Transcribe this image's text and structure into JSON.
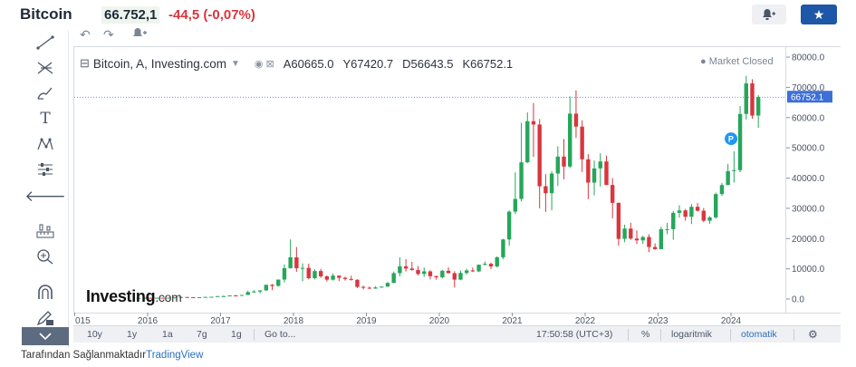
{
  "header": {
    "name": "Bitcoin",
    "price": "66.752,1",
    "change": "-44,5",
    "change_pct": "(-0,07%)"
  },
  "legend": {
    "title": "Bitcoin, A, Investing.com",
    "open": "A60665.0",
    "high": "Y67420.7",
    "low": "D56643.5",
    "close": "K66752.1",
    "market_status": "Market Closed"
  },
  "logo": {
    "main": "Investing",
    "suffix": ".com"
  },
  "bottom_bar": {
    "ranges": [
      "10y",
      "1y",
      "1a",
      "7g",
      "1g"
    ],
    "goto": "Go to...",
    "time": "17:50:58 (UTC+3)",
    "percent": "%",
    "log": "logaritmik",
    "auto": "otomatik"
  },
  "footer": {
    "prefix": "Tarafından Sağlanmaktadır",
    "link": "TradingView"
  },
  "colors": {
    "up": "#26a65b",
    "down": "#d9363e",
    "accent": "#1e56a8",
    "last_price_bg": "#3d6fd6"
  },
  "chart_data": {
    "type": "candlestick",
    "title": "Bitcoin, A, Investing.com",
    "interval": "monthly",
    "x_tick_labels": [
      "015",
      "2016",
      "2017",
      "2018",
      "2019",
      "2020",
      "2021",
      "2022",
      "2023",
      "2024"
    ],
    "y_tick_labels": [
      "80000.0",
      "70000.0",
      "60000.0",
      "50000.0",
      "40000.0",
      "30000.0",
      "20000.0",
      "10000.0",
      "0.0"
    ],
    "ylim": [
      -3000,
      80000
    ],
    "last_price": "66752.1",
    "marker_label": "P",
    "candles": [
      {
        "date": "2015-11",
        "open": 310,
        "high": 460,
        "low": 300,
        "close": 377
      },
      {
        "date": "2015-12",
        "open": 377,
        "high": 470,
        "low": 350,
        "close": 430
      },
      {
        "date": "2016-01",
        "open": 430,
        "high": 460,
        "low": 360,
        "close": 370
      },
      {
        "date": "2016-02",
        "open": 370,
        "high": 440,
        "low": 360,
        "close": 437
      },
      {
        "date": "2016-03",
        "open": 437,
        "high": 440,
        "low": 400,
        "close": 416
      },
      {
        "date": "2016-04",
        "open": 416,
        "high": 470,
        "low": 410,
        "close": 448
      },
      {
        "date": "2016-05",
        "open": 448,
        "high": 550,
        "low": 440,
        "close": 530
      },
      {
        "date": "2016-06",
        "open": 530,
        "high": 780,
        "low": 530,
        "close": 670
      },
      {
        "date": "2016-07",
        "open": 670,
        "high": 690,
        "low": 600,
        "close": 624
      },
      {
        "date": "2016-08",
        "open": 624,
        "high": 630,
        "low": 530,
        "close": 575
      },
      {
        "date": "2016-09",
        "open": 575,
        "high": 620,
        "low": 570,
        "close": 608
      },
      {
        "date": "2016-10",
        "open": 608,
        "high": 720,
        "low": 600,
        "close": 701
      },
      {
        "date": "2016-11",
        "open": 701,
        "high": 760,
        "low": 680,
        "close": 745
      },
      {
        "date": "2016-12",
        "open": 745,
        "high": 980,
        "low": 740,
        "close": 964
      },
      {
        "date": "2017-01",
        "open": 964,
        "high": 1150,
        "low": 750,
        "close": 970
      },
      {
        "date": "2017-02",
        "open": 970,
        "high": 1200,
        "low": 920,
        "close": 1190
      },
      {
        "date": "2017-03",
        "open": 1190,
        "high": 1290,
        "low": 890,
        "close": 1080
      },
      {
        "date": "2017-04",
        "open": 1080,
        "high": 1360,
        "low": 1080,
        "close": 1350
      },
      {
        "date": "2017-05",
        "open": 1350,
        "high": 2760,
        "low": 1340,
        "close": 2300
      },
      {
        "date": "2017-06",
        "open": 2300,
        "high": 2980,
        "low": 2100,
        "close": 2480
      },
      {
        "date": "2017-07",
        "open": 2480,
        "high": 2900,
        "low": 1840,
        "close": 2870
      },
      {
        "date": "2017-08",
        "open": 2870,
        "high": 4750,
        "low": 2670,
        "close": 4700
      },
      {
        "date": "2017-09",
        "open": 4700,
        "high": 4980,
        "low": 2950,
        "close": 4340
      },
      {
        "date": "2017-10",
        "open": 4340,
        "high": 6450,
        "low": 4100,
        "close": 6440
      },
      {
        "date": "2017-11",
        "open": 6440,
        "high": 11500,
        "low": 5500,
        "close": 10200
      },
      {
        "date": "2017-12",
        "open": 10200,
        "high": 19700,
        "low": 10100,
        "close": 13800
      },
      {
        "date": "2018-01",
        "open": 13800,
        "high": 17200,
        "low": 9000,
        "close": 10200
      },
      {
        "date": "2018-02",
        "open": 10200,
        "high": 11800,
        "low": 5900,
        "close": 10300
      },
      {
        "date": "2018-03",
        "open": 10300,
        "high": 11700,
        "low": 6500,
        "close": 6900
      },
      {
        "date": "2018-04",
        "open": 6900,
        "high": 9800,
        "low": 6500,
        "close": 9250
      },
      {
        "date": "2018-05",
        "open": 9250,
        "high": 9990,
        "low": 7000,
        "close": 7500
      },
      {
        "date": "2018-06",
        "open": 7500,
        "high": 7800,
        "low": 5800,
        "close": 6400
      },
      {
        "date": "2018-07",
        "open": 6400,
        "high": 8500,
        "low": 6100,
        "close": 7730
      },
      {
        "date": "2018-08",
        "open": 7730,
        "high": 7800,
        "low": 5900,
        "close": 7030
      },
      {
        "date": "2018-09",
        "open": 7030,
        "high": 7400,
        "low": 6100,
        "close": 6630
      },
      {
        "date": "2018-10",
        "open": 6630,
        "high": 7700,
        "low": 6100,
        "close": 6370
      },
      {
        "date": "2018-11",
        "open": 6370,
        "high": 6550,
        "low": 3600,
        "close": 4020
      },
      {
        "date": "2018-12",
        "open": 4020,
        "high": 4400,
        "low": 3150,
        "close": 3740
      },
      {
        "date": "2019-01",
        "open": 3740,
        "high": 4100,
        "low": 3350,
        "close": 3460
      },
      {
        "date": "2019-02",
        "open": 3460,
        "high": 4200,
        "low": 3400,
        "close": 3820
      },
      {
        "date": "2019-03",
        "open": 3820,
        "high": 4100,
        "low": 3700,
        "close": 4100
      },
      {
        "date": "2019-04",
        "open": 4100,
        "high": 5600,
        "low": 4090,
        "close": 5320
      },
      {
        "date": "2019-05",
        "open": 5320,
        "high": 9100,
        "low": 5300,
        "close": 8570
      },
      {
        "date": "2019-06",
        "open": 8570,
        "high": 13800,
        "low": 7500,
        "close": 10820
      },
      {
        "date": "2019-07",
        "open": 10820,
        "high": 13200,
        "low": 9100,
        "close": 10080
      },
      {
        "date": "2019-08",
        "open": 10080,
        "high": 12300,
        "low": 9400,
        "close": 9600
      },
      {
        "date": "2019-09",
        "open": 9600,
        "high": 10900,
        "low": 7800,
        "close": 8290
      },
      {
        "date": "2019-10",
        "open": 8290,
        "high": 10400,
        "low": 7300,
        "close": 9150
      },
      {
        "date": "2019-11",
        "open": 9150,
        "high": 9500,
        "low": 6500,
        "close": 7550
      },
      {
        "date": "2019-12",
        "open": 7550,
        "high": 7750,
        "low": 6400,
        "close": 7190
      },
      {
        "date": "2020-01",
        "open": 7190,
        "high": 9580,
        "low": 6850,
        "close": 9350
      },
      {
        "date": "2020-02",
        "open": 9350,
        "high": 10500,
        "low": 8500,
        "close": 8540
      },
      {
        "date": "2020-03",
        "open": 8540,
        "high": 9200,
        "low": 3800,
        "close": 6420
      },
      {
        "date": "2020-04",
        "open": 6420,
        "high": 9450,
        "low": 6200,
        "close": 8630
      },
      {
        "date": "2020-05",
        "open": 8630,
        "high": 10000,
        "low": 8100,
        "close": 9450
      },
      {
        "date": "2020-06",
        "open": 9450,
        "high": 10400,
        "low": 8900,
        "close": 9140
      },
      {
        "date": "2020-07",
        "open": 9140,
        "high": 11400,
        "low": 8900,
        "close": 11340
      },
      {
        "date": "2020-08",
        "open": 11340,
        "high": 12450,
        "low": 11100,
        "close": 11650
      },
      {
        "date": "2020-09",
        "open": 11650,
        "high": 12050,
        "low": 9900,
        "close": 10780
      },
      {
        "date": "2020-10",
        "open": 10780,
        "high": 14100,
        "low": 10400,
        "close": 13800
      },
      {
        "date": "2020-11",
        "open": 13800,
        "high": 19900,
        "low": 13200,
        "close": 19700
      },
      {
        "date": "2020-12",
        "open": 19700,
        "high": 29300,
        "low": 17600,
        "close": 28900
      },
      {
        "date": "2021-01",
        "open": 28900,
        "high": 41900,
        "low": 28100,
        "close": 33100
      },
      {
        "date": "2021-02",
        "open": 33100,
        "high": 58300,
        "low": 32300,
        "close": 45200
      },
      {
        "date": "2021-03",
        "open": 45200,
        "high": 61700,
        "low": 45000,
        "close": 58800
      },
      {
        "date": "2021-04",
        "open": 58800,
        "high": 64800,
        "low": 47000,
        "close": 57700
      },
      {
        "date": "2021-05",
        "open": 57700,
        "high": 59500,
        "low": 30000,
        "close": 37300
      },
      {
        "date": "2021-06",
        "open": 37300,
        "high": 41300,
        "low": 28800,
        "close": 35000
      },
      {
        "date": "2021-07",
        "open": 35000,
        "high": 42300,
        "low": 29300,
        "close": 41500
      },
      {
        "date": "2021-08",
        "open": 41500,
        "high": 50500,
        "low": 37400,
        "close": 47100
      },
      {
        "date": "2021-09",
        "open": 47100,
        "high": 52900,
        "low": 39600,
        "close": 43800
      },
      {
        "date": "2021-10",
        "open": 43800,
        "high": 67000,
        "low": 43300,
        "close": 61300
      },
      {
        "date": "2021-11",
        "open": 61300,
        "high": 69000,
        "low": 53300,
        "close": 57000
      },
      {
        "date": "2021-12",
        "open": 57000,
        "high": 59100,
        "low": 42000,
        "close": 46200
      },
      {
        "date": "2022-01",
        "open": 46200,
        "high": 47900,
        "low": 33000,
        "close": 38500
      },
      {
        "date": "2022-02",
        "open": 38500,
        "high": 45800,
        "low": 34300,
        "close": 43200
      },
      {
        "date": "2022-03",
        "open": 43200,
        "high": 48200,
        "low": 37200,
        "close": 45500
      },
      {
        "date": "2022-04",
        "open": 45500,
        "high": 47400,
        "low": 37700,
        "close": 37700
      },
      {
        "date": "2022-05",
        "open": 37700,
        "high": 40000,
        "low": 26700,
        "close": 31800
      },
      {
        "date": "2022-06",
        "open": 31800,
        "high": 31900,
        "low": 17600,
        "close": 19900
      },
      {
        "date": "2022-07",
        "open": 19900,
        "high": 24600,
        "low": 18800,
        "close": 23300
      },
      {
        "date": "2022-08",
        "open": 23300,
        "high": 25200,
        "low": 19600,
        "close": 20000
      },
      {
        "date": "2022-09",
        "open": 20000,
        "high": 22700,
        "low": 18200,
        "close": 19400
      },
      {
        "date": "2022-10",
        "open": 19400,
        "high": 20900,
        "low": 18200,
        "close": 20500
      },
      {
        "date": "2022-11",
        "open": 20500,
        "high": 21400,
        "low": 15500,
        "close": 17200
      },
      {
        "date": "2022-12",
        "open": 17200,
        "high": 18400,
        "low": 16300,
        "close": 16500
      },
      {
        "date": "2023-01",
        "open": 16500,
        "high": 23900,
        "low": 16500,
        "close": 23100
      },
      {
        "date": "2023-02",
        "open": 23100,
        "high": 25200,
        "low": 21400,
        "close": 23100
      },
      {
        "date": "2023-03",
        "open": 23100,
        "high": 29100,
        "low": 19600,
        "close": 28500
      },
      {
        "date": "2023-04",
        "open": 28500,
        "high": 31000,
        "low": 26900,
        "close": 29300
      },
      {
        "date": "2023-05",
        "open": 29300,
        "high": 29800,
        "low": 25900,
        "close": 27200
      },
      {
        "date": "2023-06",
        "open": 27200,
        "high": 31400,
        "low": 24800,
        "close": 30500
      },
      {
        "date": "2023-07",
        "open": 30500,
        "high": 31800,
        "low": 28900,
        "close": 29200
      },
      {
        "date": "2023-08",
        "open": 29200,
        "high": 30100,
        "low": 25400,
        "close": 25900
      },
      {
        "date": "2023-09",
        "open": 25900,
        "high": 27400,
        "low": 24900,
        "close": 27000
      },
      {
        "date": "2023-10",
        "open": 27000,
        "high": 35200,
        "low": 26600,
        "close": 34700
      },
      {
        "date": "2023-11",
        "open": 34700,
        "high": 38400,
        "low": 34100,
        "close": 37700
      },
      {
        "date": "2023-12",
        "open": 37700,
        "high": 44700,
        "low": 37600,
        "close": 42300
      },
      {
        "date": "2024-01",
        "open": 42300,
        "high": 48900,
        "low": 38500,
        "close": 42600
      },
      {
        "date": "2024-02",
        "open": 42600,
        "high": 63800,
        "low": 41900,
        "close": 61200
      },
      {
        "date": "2024-03",
        "open": 61200,
        "high": 73800,
        "low": 59300,
        "close": 71300
      },
      {
        "date": "2024-04",
        "open": 71300,
        "high": 72700,
        "low": 59600,
        "close": 60665
      },
      {
        "date": "2024-05",
        "open": 60665,
        "high": 67420.7,
        "low": 56643.5,
        "close": 66752.1
      }
    ]
  }
}
